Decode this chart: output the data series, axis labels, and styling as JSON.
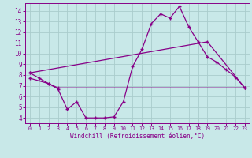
{
  "xlabel": "Windchill (Refroidissement éolien,°C)",
  "bg_color": "#c8e8e8",
  "line_color": "#880088",
  "grid_color": "#aacccc",
  "xlim": [
    -0.5,
    23.5
  ],
  "ylim": [
    3.5,
    14.7
  ],
  "xticks": [
    0,
    1,
    2,
    3,
    4,
    5,
    6,
    7,
    8,
    9,
    10,
    11,
    12,
    13,
    14,
    15,
    16,
    17,
    18,
    19,
    20,
    21,
    22,
    23
  ],
  "yticks": [
    4,
    5,
    6,
    7,
    8,
    9,
    10,
    11,
    12,
    13,
    14
  ],
  "curve1_x": [
    0,
    1,
    2,
    3,
    4,
    5,
    6,
    7,
    8,
    9,
    10,
    11,
    12,
    13,
    14,
    15,
    16,
    17,
    18,
    19,
    20,
    21,
    22,
    23
  ],
  "curve1_y": [
    8.2,
    7.7,
    7.2,
    6.7,
    4.8,
    5.5,
    4.0,
    4.0,
    4.0,
    4.1,
    5.5,
    8.8,
    10.4,
    12.8,
    13.7,
    13.3,
    14.4,
    12.5,
    11.1,
    9.7,
    9.2,
    8.5,
    7.8,
    6.8
  ],
  "curve2_x": [
    0,
    2,
    3,
    23
  ],
  "curve2_y": [
    7.7,
    7.2,
    6.8,
    6.8
  ],
  "curve3_x": [
    0,
    19,
    23
  ],
  "curve3_y": [
    8.2,
    11.1,
    6.8
  ]
}
